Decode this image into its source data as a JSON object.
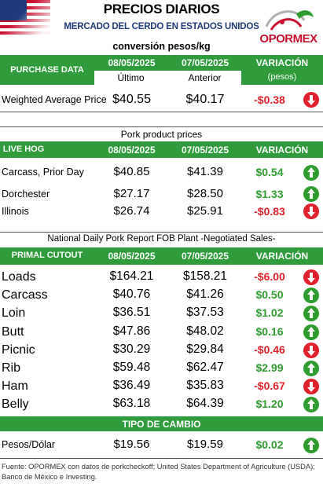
{
  "header": {
    "title": "PRECIOS DIARIOS",
    "subtitle": "MERCADO DEL CERDO EN ESTADOS UNIDOS",
    "conversion": "conversión pesos/kg",
    "logo_text": "OPORMEX",
    "brand_color": "#c8102e"
  },
  "purchase": {
    "headers": {
      "section": "PURCHASE DATA",
      "date1": "08/05/2025",
      "date2": "07/05/2025",
      "variation": "VARIACIÓN"
    },
    "subheaders": {
      "col1": "Último",
      "col2": "Anterior",
      "variation_unit": "(pesos)"
    },
    "rows": [
      {
        "label": "Weighted Average Price",
        "v1": "$40.55",
        "v2": "$40.17",
        "var": "-$0.38",
        "dir": "down"
      }
    ]
  },
  "pork": {
    "title": "Pork product prices",
    "headers": {
      "section": "LIVE HOG",
      "date1": "08/05/2025",
      "date2": "07/05/2025",
      "variation": "VARIACIÓN"
    },
    "rows": [
      {
        "label": "Carcass, Prior Day",
        "v1": "$40.85",
        "v2": "$41.39",
        "var": "$0.54",
        "dir": "up"
      },
      {
        "label": "Dorchester",
        "v1": "$27.17",
        "v2": "$28.50",
        "var": "$1.33",
        "dir": "up"
      },
      {
        "label": "Illinois",
        "v1": "$26.74",
        "v2": "$25.91",
        "var": "-$0.83",
        "dir": "down"
      }
    ]
  },
  "report": {
    "title": "National Daily Pork Report FOB Plant -Negotiated Sales-",
    "headers": {
      "section": "PRIMAL CUTOUT",
      "date1": "08/05/2025",
      "date2": "07/05/2025",
      "variation": "VARIACIÓN"
    },
    "rows": [
      {
        "label": "Loads",
        "v1": "$164.21",
        "v2": "$158.21",
        "var": "-$6.00",
        "dir": "down"
      },
      {
        "label": "Carcass",
        "v1": "$40.76",
        "v2": "$41.26",
        "var": "$0.50",
        "dir": "up"
      },
      {
        "label": "Loin",
        "v1": "$36.51",
        "v2": "$37.53",
        "var": "$1.02",
        "dir": "up"
      },
      {
        "label": "Butt",
        "v1": "$47.86",
        "v2": "$48.02",
        "var": "$0.16",
        "dir": "up"
      },
      {
        "label": "Picnic",
        "v1": "$30.29",
        "v2": "$29.84",
        "var": "-$0.46",
        "dir": "down"
      },
      {
        "label": "Rib",
        "v1": "$59.48",
        "v2": "$62.47",
        "var": "$2.99",
        "dir": "up"
      },
      {
        "label": "Ham",
        "v1": "$36.49",
        "v2": "$35.83",
        "var": "-$0.67",
        "dir": "down"
      },
      {
        "label": "Belly",
        "v1": "$63.18",
        "v2": "$64.39",
        "var": "$1.20",
        "dir": "up"
      }
    ]
  },
  "exchange": {
    "title": "TIPO DE CAMBIO",
    "rows": [
      {
        "label": "Pesos/Dólar",
        "v1": "$19.56",
        "v2": "$19.59",
        "var": "$0.02",
        "dir": "up"
      }
    ]
  },
  "footer": {
    "source": "Fuente: OPORMEX con datos de porkcheckoff; United States Department of Agriculture (USDA); Banco de México e Investing."
  },
  "colors": {
    "header_green": "#2f9b3a",
    "positive": "#2e9d2e",
    "negative": "#e0202a",
    "subtitle_blue": "#1f3a7a"
  }
}
